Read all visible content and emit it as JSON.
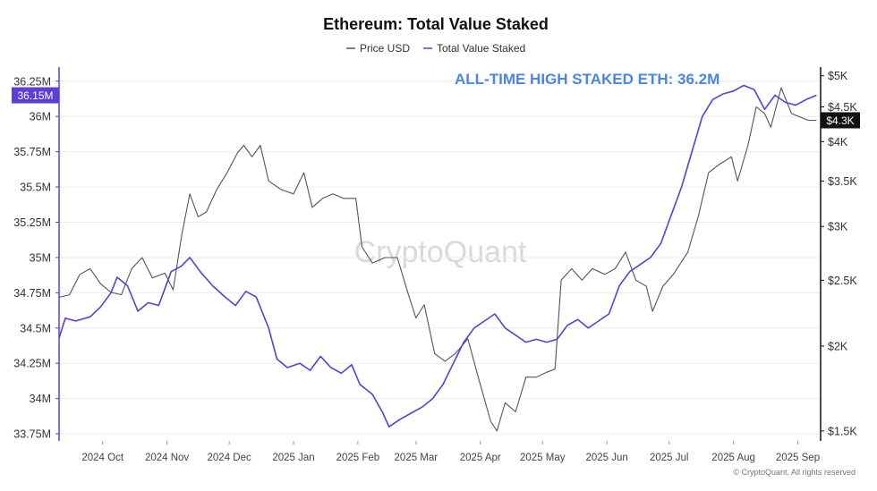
{
  "chart_data": {
    "type": "line",
    "title": "Ethereum: Total Value Staked",
    "watermark": "CryptoQuant",
    "copyright": "© CryptoQuant. All rights reserved",
    "annotation": "ALL-TIME HIGH STAKED ETH: 36.2M",
    "colors": {
      "staked": "#5b3fd6",
      "price": "#555555",
      "annotation": "#4b86e6",
      "axis": "#111111"
    },
    "left_axis": {
      "ylim": [
        33.7,
        36.35
      ],
      "ticks": [
        33.75,
        34,
        34.25,
        34.5,
        34.75,
        35,
        35.25,
        35.5,
        35.75,
        36,
        36.25
      ],
      "tick_labels": [
        "33.75M",
        "34M",
        "34.25M",
        "34.5M",
        "34.75M",
        "35M",
        "35.25M",
        "35.5M",
        "35.75M",
        "36M",
        "36.25M"
      ],
      "badge": "36.15M",
      "badge_value": 36.15
    },
    "right_axis": {
      "scale": "log",
      "ylim": [
        1450,
        5150
      ],
      "ticks": [
        1500,
        2000,
        2500,
        3000,
        3500,
        4000,
        4500,
        5000
      ],
      "tick_labels": [
        "$1.5K",
        "$2K",
        "$2.5K",
        "$3K",
        "$3.5K",
        "$4K",
        "$4.5K",
        "$5K"
      ],
      "badge": "$4.3K",
      "badge_value": 4300
    },
    "x_axis": {
      "start": "2024-09-10",
      "end": "2025-09-12",
      "ticks": [
        "2024-10-01",
        "2024-11-01",
        "2024-12-01",
        "2025-01-01",
        "2025-02-01",
        "2025-03-01",
        "2025-04-01",
        "2025-05-01",
        "2025-06-01",
        "2025-07-01",
        "2025-08-01",
        "2025-09-01"
      ],
      "tick_labels": [
        "2024 Oct",
        "2024 Nov",
        "2024 Dec",
        "2025 Jan",
        "2025 Feb",
        "2025 Mar",
        "2025 Apr",
        "2025 May",
        "2025 Jun",
        "2025 Jul",
        "2025 Aug",
        "2025 Sep"
      ]
    },
    "series": [
      {
        "name": "Price USD",
        "axis": "right",
        "points": [
          [
            "2024-09-10",
            2360
          ],
          [
            "2024-09-15",
            2380
          ],
          [
            "2024-09-20",
            2550
          ],
          [
            "2024-09-25",
            2600
          ],
          [
            "2024-09-30",
            2470
          ],
          [
            "2024-10-05",
            2400
          ],
          [
            "2024-10-10",
            2380
          ],
          [
            "2024-10-15",
            2600
          ],
          [
            "2024-10-20",
            2700
          ],
          [
            "2024-10-25",
            2520
          ],
          [
            "2024-10-31",
            2560
          ],
          [
            "2024-11-04",
            2420
          ],
          [
            "2024-11-08",
            2900
          ],
          [
            "2024-11-12",
            3350
          ],
          [
            "2024-11-16",
            3100
          ],
          [
            "2024-11-20",
            3150
          ],
          [
            "2024-11-25",
            3400
          ],
          [
            "2024-11-30",
            3600
          ],
          [
            "2024-12-05",
            3850
          ],
          [
            "2024-12-08",
            3950
          ],
          [
            "2024-12-12",
            3800
          ],
          [
            "2024-12-16",
            3950
          ],
          [
            "2024-12-20",
            3500
          ],
          [
            "2024-12-26",
            3400
          ],
          [
            "2025-01-01",
            3350
          ],
          [
            "2025-01-06",
            3600
          ],
          [
            "2025-01-10",
            3200
          ],
          [
            "2025-01-15",
            3300
          ],
          [
            "2025-01-20",
            3350
          ],
          [
            "2025-01-25",
            3300
          ],
          [
            "2025-01-31",
            3300
          ],
          [
            "2025-02-03",
            2800
          ],
          [
            "2025-02-08",
            2650
          ],
          [
            "2025-02-14",
            2700
          ],
          [
            "2025-02-20",
            2700
          ],
          [
            "2025-02-25",
            2400
          ],
          [
            "2025-03-01",
            2200
          ],
          [
            "2025-03-05",
            2300
          ],
          [
            "2025-03-10",
            1950
          ],
          [
            "2025-03-15",
            1900
          ],
          [
            "2025-03-20",
            1950
          ],
          [
            "2025-03-26",
            2050
          ],
          [
            "2025-03-31",
            1800
          ],
          [
            "2025-04-06",
            1550
          ],
          [
            "2025-04-09",
            1500
          ],
          [
            "2025-04-13",
            1650
          ],
          [
            "2025-04-18",
            1600
          ],
          [
            "2025-04-23",
            1800
          ],
          [
            "2025-04-28",
            1800
          ],
          [
            "2025-05-03",
            1830
          ],
          [
            "2025-05-07",
            1850
          ],
          [
            "2025-05-10",
            2500
          ],
          [
            "2025-05-15",
            2600
          ],
          [
            "2025-05-20",
            2500
          ],
          [
            "2025-05-25",
            2600
          ],
          [
            "2025-05-31",
            2550
          ],
          [
            "2025-06-05",
            2600
          ],
          [
            "2025-06-10",
            2750
          ],
          [
            "2025-06-15",
            2500
          ],
          [
            "2025-06-20",
            2450
          ],
          [
            "2025-06-23",
            2250
          ],
          [
            "2025-06-28",
            2450
          ],
          [
            "2025-07-03",
            2550
          ],
          [
            "2025-07-10",
            2750
          ],
          [
            "2025-07-15",
            3100
          ],
          [
            "2025-07-20",
            3600
          ],
          [
            "2025-07-25",
            3700
          ],
          [
            "2025-07-31",
            3800
          ],
          [
            "2025-08-03",
            3500
          ],
          [
            "2025-08-08",
            3950
          ],
          [
            "2025-08-12",
            4500
          ],
          [
            "2025-08-16",
            4400
          ],
          [
            "2025-08-19",
            4200
          ],
          [
            "2025-08-24",
            4800
          ],
          [
            "2025-08-29",
            4400
          ],
          [
            "2025-09-02",
            4350
          ],
          [
            "2025-09-06",
            4300
          ],
          [
            "2025-09-10",
            4300
          ]
        ]
      },
      {
        "name": "Total Value Staked",
        "axis": "left",
        "points": [
          [
            "2024-09-10",
            34.43
          ],
          [
            "2024-09-13",
            34.57
          ],
          [
            "2024-09-18",
            34.55
          ],
          [
            "2024-09-25",
            34.58
          ],
          [
            "2024-09-30",
            34.65
          ],
          [
            "2024-10-05",
            34.75
          ],
          [
            "2024-10-08",
            34.86
          ],
          [
            "2024-10-13",
            34.8
          ],
          [
            "2024-10-18",
            34.62
          ],
          [
            "2024-10-23",
            34.68
          ],
          [
            "2024-10-28",
            34.66
          ],
          [
            "2024-11-03",
            34.9
          ],
          [
            "2024-11-08",
            34.94
          ],
          [
            "2024-11-12",
            35.0
          ],
          [
            "2024-11-17",
            34.9
          ],
          [
            "2024-11-23",
            34.8
          ],
          [
            "2024-11-29",
            34.72
          ],
          [
            "2024-12-04",
            34.66
          ],
          [
            "2024-12-09",
            34.76
          ],
          [
            "2024-12-14",
            34.72
          ],
          [
            "2024-12-20",
            34.5
          ],
          [
            "2024-12-24",
            34.28
          ],
          [
            "2024-12-29",
            34.22
          ],
          [
            "2025-01-04",
            34.25
          ],
          [
            "2025-01-09",
            34.2
          ],
          [
            "2025-01-14",
            34.3
          ],
          [
            "2025-01-19",
            34.22
          ],
          [
            "2025-01-24",
            34.18
          ],
          [
            "2025-01-29",
            34.24
          ],
          [
            "2025-02-02",
            34.1
          ],
          [
            "2025-02-08",
            34.03
          ],
          [
            "2025-02-13",
            33.9
          ],
          [
            "2025-02-16",
            33.8
          ],
          [
            "2025-02-21",
            33.85
          ],
          [
            "2025-02-27",
            33.9
          ],
          [
            "2025-03-04",
            33.94
          ],
          [
            "2025-03-09",
            34.0
          ],
          [
            "2025-03-14",
            34.1
          ],
          [
            "2025-03-19",
            34.25
          ],
          [
            "2025-03-24",
            34.4
          ],
          [
            "2025-03-29",
            34.5
          ],
          [
            "2025-04-03",
            34.55
          ],
          [
            "2025-04-08",
            34.6
          ],
          [
            "2025-04-13",
            34.5
          ],
          [
            "2025-04-18",
            34.45
          ],
          [
            "2025-04-23",
            34.4
          ],
          [
            "2025-04-28",
            34.42
          ],
          [
            "2025-05-03",
            34.4
          ],
          [
            "2025-05-08",
            34.42
          ],
          [
            "2025-05-13",
            34.52
          ],
          [
            "2025-05-18",
            34.56
          ],
          [
            "2025-05-23",
            34.5
          ],
          [
            "2025-05-28",
            34.55
          ],
          [
            "2025-06-02",
            34.6
          ],
          [
            "2025-06-07",
            34.8
          ],
          [
            "2025-06-12",
            34.9
          ],
          [
            "2025-06-17",
            34.95
          ],
          [
            "2025-06-22",
            35.0
          ],
          [
            "2025-06-27",
            35.1
          ],
          [
            "2025-07-02",
            35.3
          ],
          [
            "2025-07-07",
            35.5
          ],
          [
            "2025-07-12",
            35.75
          ],
          [
            "2025-07-17",
            36.0
          ],
          [
            "2025-07-22",
            36.12
          ],
          [
            "2025-07-27",
            36.16
          ],
          [
            "2025-08-01",
            36.18
          ],
          [
            "2025-08-06",
            36.22
          ],
          [
            "2025-08-11",
            36.19
          ],
          [
            "2025-08-16",
            36.05
          ],
          [
            "2025-08-21",
            36.15
          ],
          [
            "2025-08-26",
            36.1
          ],
          [
            "2025-08-31",
            36.08
          ],
          [
            "2025-09-05",
            36.12
          ],
          [
            "2025-09-10",
            36.15
          ]
        ]
      }
    ]
  }
}
